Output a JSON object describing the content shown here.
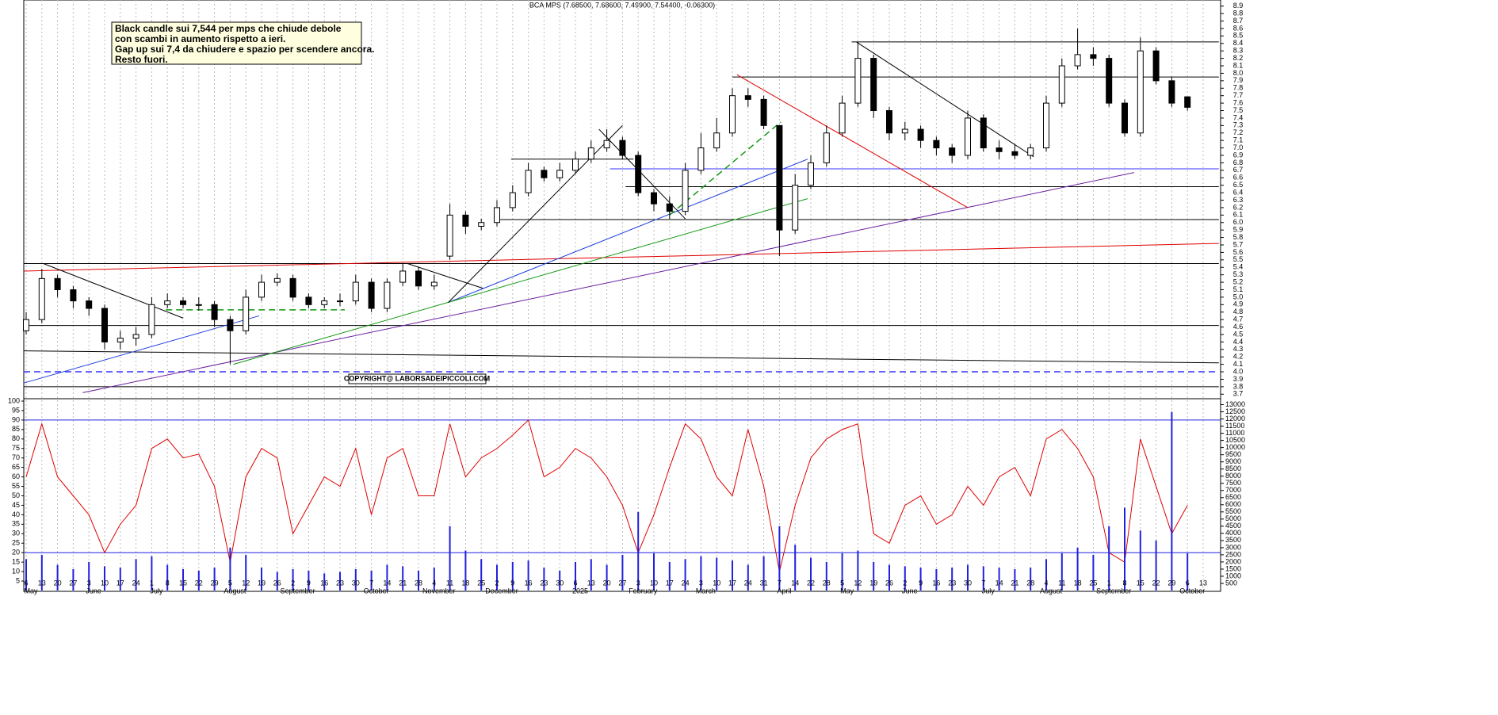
{
  "chart_data": [
    {
      "type": "candlestick",
      "title": "BCA MPS (7.68500, 7.68600, 7.49900, 7.54400, -0.06300)",
      "annotation": [
        "Black candle sui 7,544 per mps che chiude debole",
        "con scambi in aumento rispetto a ieri.",
        "Gap up sui 7,4 da chiudere e spazio per scendere ancora.",
        "Resto fuori."
      ],
      "copyright": "COPYRIGHT@ LABORSADEIPICCOLI.COM",
      "categories": [
        "6",
        "13",
        "20",
        "27",
        "3",
        "10",
        "17",
        "24",
        "1",
        "8",
        "15",
        "22",
        "29",
        "5",
        "12",
        "19",
        "26",
        "2",
        "9",
        "16",
        "23",
        "30",
        "7",
        "14",
        "21",
        "28",
        "4",
        "11",
        "18",
        "25",
        "2",
        "9",
        "16",
        "23",
        "30",
        "6",
        "13",
        "20",
        "27",
        "3",
        "10",
        "17",
        "24",
        "3",
        "10",
        "17",
        "24",
        "31",
        "7",
        "14",
        "22",
        "28",
        "5",
        "12",
        "19",
        "26",
        "2",
        "9",
        "16",
        "23",
        "30",
        "7",
        "14",
        "21",
        "28",
        "4",
        "11",
        "18",
        "25",
        "1",
        "8",
        "15",
        "22",
        "29",
        "6",
        "13"
      ],
      "months": [
        "May",
        null,
        null,
        null,
        "June",
        null,
        null,
        null,
        "July",
        null,
        null,
        null,
        null,
        "August",
        null,
        null,
        null,
        "September",
        null,
        null,
        null,
        null,
        "October",
        null,
        null,
        null,
        "November",
        null,
        null,
        null,
        "December",
        null,
        null,
        null,
        null,
        "2025",
        null,
        null,
        null,
        "February",
        null,
        null,
        null,
        "March",
        null,
        null,
        null,
        null,
        "April",
        null,
        null,
        null,
        "May",
        null,
        null,
        null,
        "June",
        null,
        null,
        null,
        null,
        "July",
        null,
        null,
        null,
        "August",
        null,
        null,
        null,
        "September",
        null,
        null,
        null,
        null,
        "October",
        null
      ],
      "open": [
        4.55,
        4.7,
        5.25,
        5.1,
        4.95,
        4.85,
        4.4,
        4.45,
        4.5,
        4.9,
        4.95,
        4.9,
        4.9,
        4.7,
        4.55,
        5.0,
        5.2,
        5.25,
        5.0,
        4.9,
        4.95,
        4.95,
        5.2,
        4.85,
        5.2,
        5.35,
        5.15,
        5.55,
        6.1,
        5.95,
        6.0,
        6.2,
        6.4,
        6.7,
        6.6,
        6.7,
        6.85,
        7.0,
        7.1,
        6.9,
        6.4,
        6.25,
        6.15,
        6.7,
        7.0,
        7.2,
        7.7,
        7.65,
        7.3,
        5.9,
        6.5,
        6.8,
        7.2,
        7.6,
        8.2,
        7.5,
        7.2,
        7.25,
        7.1,
        7.0,
        6.9,
        7.4,
        7.0,
        6.95,
        6.9,
        7.0,
        7.6,
        8.1,
        8.25,
        8.2,
        7.6,
        7.2,
        8.3,
        7.9,
        7.685,
        null
      ],
      "high": [
        4.8,
        5.38,
        5.3,
        5.15,
        5.0,
        4.9,
        4.55,
        4.6,
        5.0,
        5.05,
        5.0,
        5.0,
        4.95,
        4.75,
        5.1,
        5.3,
        5.32,
        5.3,
        5.05,
        5.0,
        5.05,
        5.3,
        5.25,
        5.25,
        5.45,
        5.4,
        5.3,
        6.25,
        6.15,
        6.05,
        6.3,
        6.5,
        6.8,
        6.75,
        6.8,
        6.95,
        7.1,
        7.25,
        7.15,
        6.95,
        6.45,
        6.35,
        6.8,
        7.2,
        7.4,
        7.8,
        7.8,
        7.7,
        7.3,
        6.65,
        6.9,
        7.3,
        7.7,
        8.42,
        8.25,
        7.55,
        7.35,
        7.3,
        7.15,
        7.05,
        7.5,
        7.45,
        7.1,
        7.05,
        7.05,
        7.7,
        8.2,
        8.6,
        8.35,
        8.25,
        7.65,
        8.48,
        8.35,
        7.95,
        7.686,
        null
      ],
      "low": [
        4.5,
        4.65,
        5.0,
        4.85,
        4.75,
        4.3,
        4.3,
        4.35,
        4.45,
        4.85,
        4.85,
        4.82,
        4.6,
        4.1,
        4.5,
        4.95,
        5.15,
        4.95,
        4.85,
        4.85,
        4.88,
        4.9,
        4.8,
        4.8,
        5.15,
        5.1,
        5.1,
        5.5,
        5.85,
        5.9,
        5.95,
        6.15,
        6.35,
        6.55,
        6.55,
        6.65,
        6.8,
        6.95,
        6.85,
        6.35,
        6.15,
        6.05,
        6.1,
        6.65,
        6.95,
        7.15,
        7.55,
        7.25,
        5.55,
        5.85,
        6.45,
        6.75,
        7.15,
        7.55,
        7.4,
        7.1,
        7.1,
        7.0,
        6.9,
        6.8,
        6.85,
        6.95,
        6.85,
        6.85,
        6.85,
        6.95,
        7.55,
        8.05,
        8.1,
        7.55,
        7.15,
        7.15,
        7.85,
        7.55,
        7.499,
        null
      ],
      "close": [
        4.7,
        5.25,
        5.1,
        4.95,
        4.85,
        4.4,
        4.45,
        4.5,
        4.9,
        4.95,
        4.9,
        4.9,
        4.7,
        4.55,
        5.0,
        5.2,
        5.25,
        5.0,
        4.9,
        4.95,
        4.95,
        5.2,
        4.85,
        5.2,
        5.35,
        5.15,
        5.2,
        6.1,
        5.95,
        6.0,
        6.2,
        6.4,
        6.7,
        6.6,
        6.7,
        6.85,
        7.0,
        7.1,
        6.9,
        6.4,
        6.25,
        6.15,
        6.7,
        7.0,
        7.2,
        7.7,
        7.65,
        7.3,
        5.9,
        6.5,
        6.8,
        7.2,
        7.6,
        8.2,
        7.5,
        7.2,
        7.25,
        7.1,
        7.0,
        6.9,
        7.4,
        7.0,
        6.95,
        6.9,
        7.0,
        7.6,
        8.1,
        8.25,
        8.2,
        7.6,
        7.2,
        8.3,
        7.9,
        7.6,
        7.544,
        null
      ],
      "ylim": [
        3.65,
        8.95
      ],
      "yticks": [
        3.7,
        3.8,
        3.9,
        {
          "value": 4,
          "label": "4.0"
        },
        4.1,
        4.2,
        4.3,
        4.4,
        4.5,
        4.6,
        4.7,
        4.8,
        4.9,
        {
          "value": 5,
          "label": "5.0"
        },
        5.1,
        5.2,
        5.3,
        5.4,
        5.5,
        5.6,
        5.7,
        5.8,
        5.9,
        {
          "value": 6,
          "label": "6.0"
        },
        6.1,
        6.2,
        6.3,
        6.4,
        6.5,
        6.6,
        6.7,
        6.8,
        6.9,
        {
          "value": 7,
          "label": "7.0"
        },
        7.1,
        7.2,
        7.3,
        7.4,
        7.5,
        7.6,
        7.7,
        7.8,
        7.9,
        {
          "value": 8,
          "label": "8.0"
        },
        8.1,
        8.2,
        8.3,
        8.4,
        8.5,
        8.6,
        8.7,
        8.8,
        8.9
      ],
      "grid": true,
      "lines": [
        {
          "x": [
            -0.2,
            76
          ],
          "y": [
            5.45,
            5.45
          ],
          "color": "#000000"
        },
        {
          "x": [
            -0.2,
            76
          ],
          "y": [
            4.62,
            4.62
          ],
          "color": "#000000"
        },
        {
          "x": [
            -0.2,
            76
          ],
          "y": [
            4.0,
            4.0
          ],
          "color": "#3333ff",
          "dash": true
        },
        {
          "x": [
            -0.2,
            76
          ],
          "y": [
            3.8,
            3.8
          ],
          "color": "#000000"
        },
        {
          "x": [
            -0.2,
            76
          ],
          "y": [
            4.28,
            4.12
          ],
          "color": "#000000"
        },
        {
          "x": [
            29.9,
            76
          ],
          "y": [
            6.04,
            6.04
          ],
          "color": "#000000"
        },
        {
          "x": [
            38.2,
            76
          ],
          "y": [
            6.48,
            6.48
          ],
          "color": "#000000"
        },
        {
          "x": [
            37.2,
            76
          ],
          "y": [
            6.72,
            6.72
          ],
          "color": "#3333ff"
        },
        {
          "x": [
            45,
            76
          ],
          "y": [
            7.95,
            7.95
          ],
          "color": "#000000"
        },
        {
          "x": [
            52.6,
            76
          ],
          "y": [
            8.42,
            8.42
          ],
          "color": "#000000"
        },
        {
          "x": [
            30.9,
            38.7
          ],
          "y": [
            6.85,
            6.85
          ],
          "color": "#000000"
        },
        {
          "x": [
            -0.2,
            76
          ],
          "y": [
            5.35,
            5.72
          ],
          "color": "#e00000"
        },
        {
          "x": [
            3.6,
            70.6
          ],
          "y": [
            3.72,
            6.67
          ],
          "color": "#6a1fa0"
        },
        {
          "x": [
            -0.2,
            14.85
          ],
          "y": [
            3.85,
            4.75
          ],
          "color": "#2040e0"
        },
        {
          "x": [
            26.9,
            49.8
          ],
          "y": [
            4.93,
            6.85
          ],
          "color": "#2040e0"
        },
        {
          "x": [
            13.2,
            49.8
          ],
          "y": [
            4.1,
            6.32
          ],
          "color": "#119911"
        },
        {
          "x": [
            1.1,
            10
          ],
          "y": [
            5.45,
            4.72
          ],
          "color": "#000000"
        },
        {
          "x": [
            26.9,
            38
          ],
          "y": [
            4.93,
            7.3
          ],
          "color": "#000000"
        },
        {
          "x": [
            36.5,
            42
          ],
          "y": [
            7.25,
            6.05
          ],
          "color": "#000000"
        },
        {
          "x": [
            45.3,
            60
          ],
          "y": [
            7.98,
            6.2
          ],
          "color": "#e00000"
        },
        {
          "x": [
            52.9,
            64.2
          ],
          "y": [
            8.42,
            6.88
          ],
          "color": "#000000"
        },
        {
          "x": [
            41,
            48.1
          ],
          "y": [
            6.1,
            7.35
          ],
          "color": "#119911",
          "dash": true
        },
        {
          "x": [
            8.9,
            20.3
          ],
          "y": [
            4.83,
            4.83
          ],
          "color": "#119911",
          "dash": true
        },
        {
          "x": [
            24.3,
            29.1
          ],
          "y": [
            5.45,
            5.12
          ],
          "color": "#000000"
        }
      ]
    },
    {
      "type": "combo",
      "series": [
        {
          "color": "#e00000",
          "kind": "line",
          "values": [
            60,
            88,
            60,
            50,
            40,
            20,
            35,
            45,
            75,
            80,
            70,
            72,
            55,
            15,
            60,
            75,
            70,
            30,
            45,
            60,
            55,
            75,
            40,
            70,
            75,
            50,
            50,
            88,
            60,
            70,
            75,
            82,
            90,
            60,
            65,
            75,
            70,
            60,
            45,
            20,
            40,
            65,
            88,
            80,
            60,
            50,
            85,
            55,
            10,
            45,
            70,
            80,
            85,
            88,
            30,
            25,
            45,
            50,
            35,
            40,
            55,
            45,
            60,
            65,
            50,
            80,
            85,
            75,
            60,
            20,
            15,
            80,
            55,
            30,
            45,
            null
          ]
        },
        {
          "color": "#2020e0",
          "kind": "bar",
          "axis": "y2",
          "values": [
            2200,
            2500,
            1800,
            1500,
            2000,
            1700,
            1600,
            2200,
            2400,
            1800,
            1500,
            1400,
            1600,
            3000,
            2500,
            1600,
            1300,
            1500,
            1400,
            1200,
            1300,
            1500,
            1400,
            1800,
            1700,
            1400,
            1600,
            4500,
            2800,
            2200,
            1800,
            2000,
            2100,
            1600,
            1400,
            2000,
            2200,
            1800,
            2500,
            5500,
            2600,
            2000,
            2200,
            2400,
            2300,
            2100,
            1800,
            2400,
            4500,
            3200,
            2300,
            2000,
            2600,
            2800,
            2000,
            1800,
            1700,
            1600,
            1500,
            1600,
            1800,
            1700,
            1600,
            1500,
            1600,
            2200,
            2600,
            3000,
            2500,
            4500,
            5800,
            4200,
            3500,
            12500,
            2600,
            null
          ]
        }
      ],
      "ylim": [
        0,
        100
      ],
      "yticks": [
        5,
        10,
        15,
        20,
        25,
        30,
        35,
        40,
        45,
        50,
        55,
        60,
        65,
        70,
        75,
        80,
        85,
        90,
        95,
        100
      ],
      "y2lim": [
        0,
        13250
      ],
      "y2ticks": [
        500,
        1000,
        1500,
        2000,
        2500,
        3000,
        3500,
        4000,
        4500,
        5000,
        5500,
        6000,
        6500,
        7000,
        7500,
        8000,
        8500,
        9000,
        9500,
        10000,
        10500,
        11000,
        11500,
        12000,
        12500,
        13000
      ],
      "hlines": [
        90,
        20
      ]
    }
  ]
}
